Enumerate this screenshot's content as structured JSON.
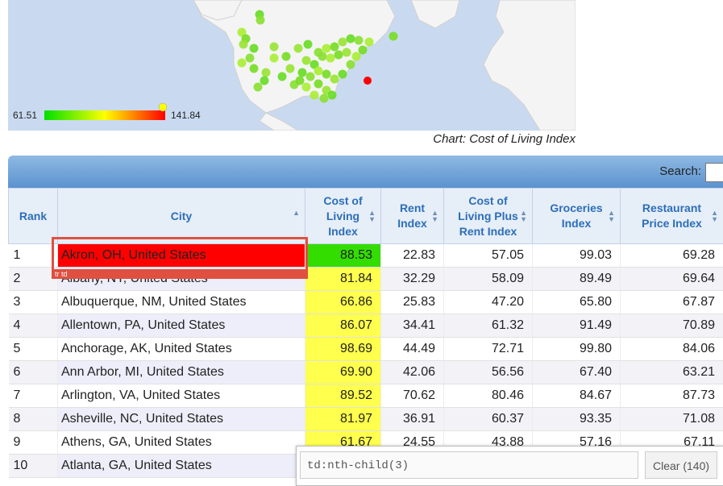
{
  "map": {
    "legend_min": "61.51",
    "legend_max": "141.84",
    "caption": "Chart: Cost of Living Index",
    "colors": {
      "low": "#00e000",
      "mid": "#ffff00",
      "high": "#ff0000",
      "ocean": "#c9daf0",
      "land": "#f4f4f4"
    }
  },
  "toolbar": {
    "search_label": "Search:",
    "search_value": ""
  },
  "table": {
    "headers": [
      {
        "label": "Rank"
      },
      {
        "label": "City"
      },
      {
        "label": "Cost of Living Index"
      },
      {
        "label": "Rent Index"
      },
      {
        "label": "Cost of Living Plus Rent Index"
      },
      {
        "label": "Groceries Index"
      },
      {
        "label": "Restaurant Price Index"
      }
    ],
    "rows": [
      {
        "rank": "1",
        "city": "Akron, OH, United States",
        "col": "88.53",
        "rent": "22.83",
        "colplus": "57.05",
        "groceries": "99.03",
        "restaurant": "69.28"
      },
      {
        "rank": "2",
        "city": "Albany, NY, United States",
        "col": "81.84",
        "rent": "32.29",
        "colplus": "58.09",
        "groceries": "89.49",
        "restaurant": "69.64"
      },
      {
        "rank": "3",
        "city": "Albuquerque, NM, United States",
        "col": "66.86",
        "rent": "25.83",
        "colplus": "47.20",
        "groceries": "65.80",
        "restaurant": "67.87"
      },
      {
        "rank": "4",
        "city": "Allentown, PA, United States",
        "col": "86.07",
        "rent": "34.41",
        "colplus": "61.32",
        "groceries": "91.49",
        "restaurant": "70.89"
      },
      {
        "rank": "5",
        "city": "Anchorage, AK, United States",
        "col": "98.69",
        "rent": "44.49",
        "colplus": "72.71",
        "groceries": "99.80",
        "restaurant": "84.06"
      },
      {
        "rank": "6",
        "city": "Ann Arbor, MI, United States",
        "col": "69.90",
        "rent": "42.06",
        "colplus": "56.56",
        "groceries": "67.40",
        "restaurant": "63.21"
      },
      {
        "rank": "7",
        "city": "Arlington, VA, United States",
        "col": "89.52",
        "rent": "70.62",
        "colplus": "80.46",
        "groceries": "84.67",
        "restaurant": "87.73"
      },
      {
        "rank": "8",
        "city": "Asheville, NC, United States",
        "col": "81.97",
        "rent": "36.91",
        "colplus": "60.37",
        "groceries": "93.35",
        "restaurant": "71.08"
      },
      {
        "rank": "9",
        "city": "Athens, GA, United States",
        "col": "61.67",
        "rent": "24.55",
        "colplus": "43.88",
        "groceries": "57.16",
        "restaurant": "67.11"
      },
      {
        "rank": "10",
        "city": "Atlanta, GA, United States",
        "col": "",
        "rent": "",
        "colplus": "",
        "groceries": "",
        "restaurant": ""
      }
    ]
  },
  "inspector": {
    "element_tag": "tr td",
    "selector_value": "td:nth-child(3)",
    "clear_label": "Clear (140)"
  }
}
